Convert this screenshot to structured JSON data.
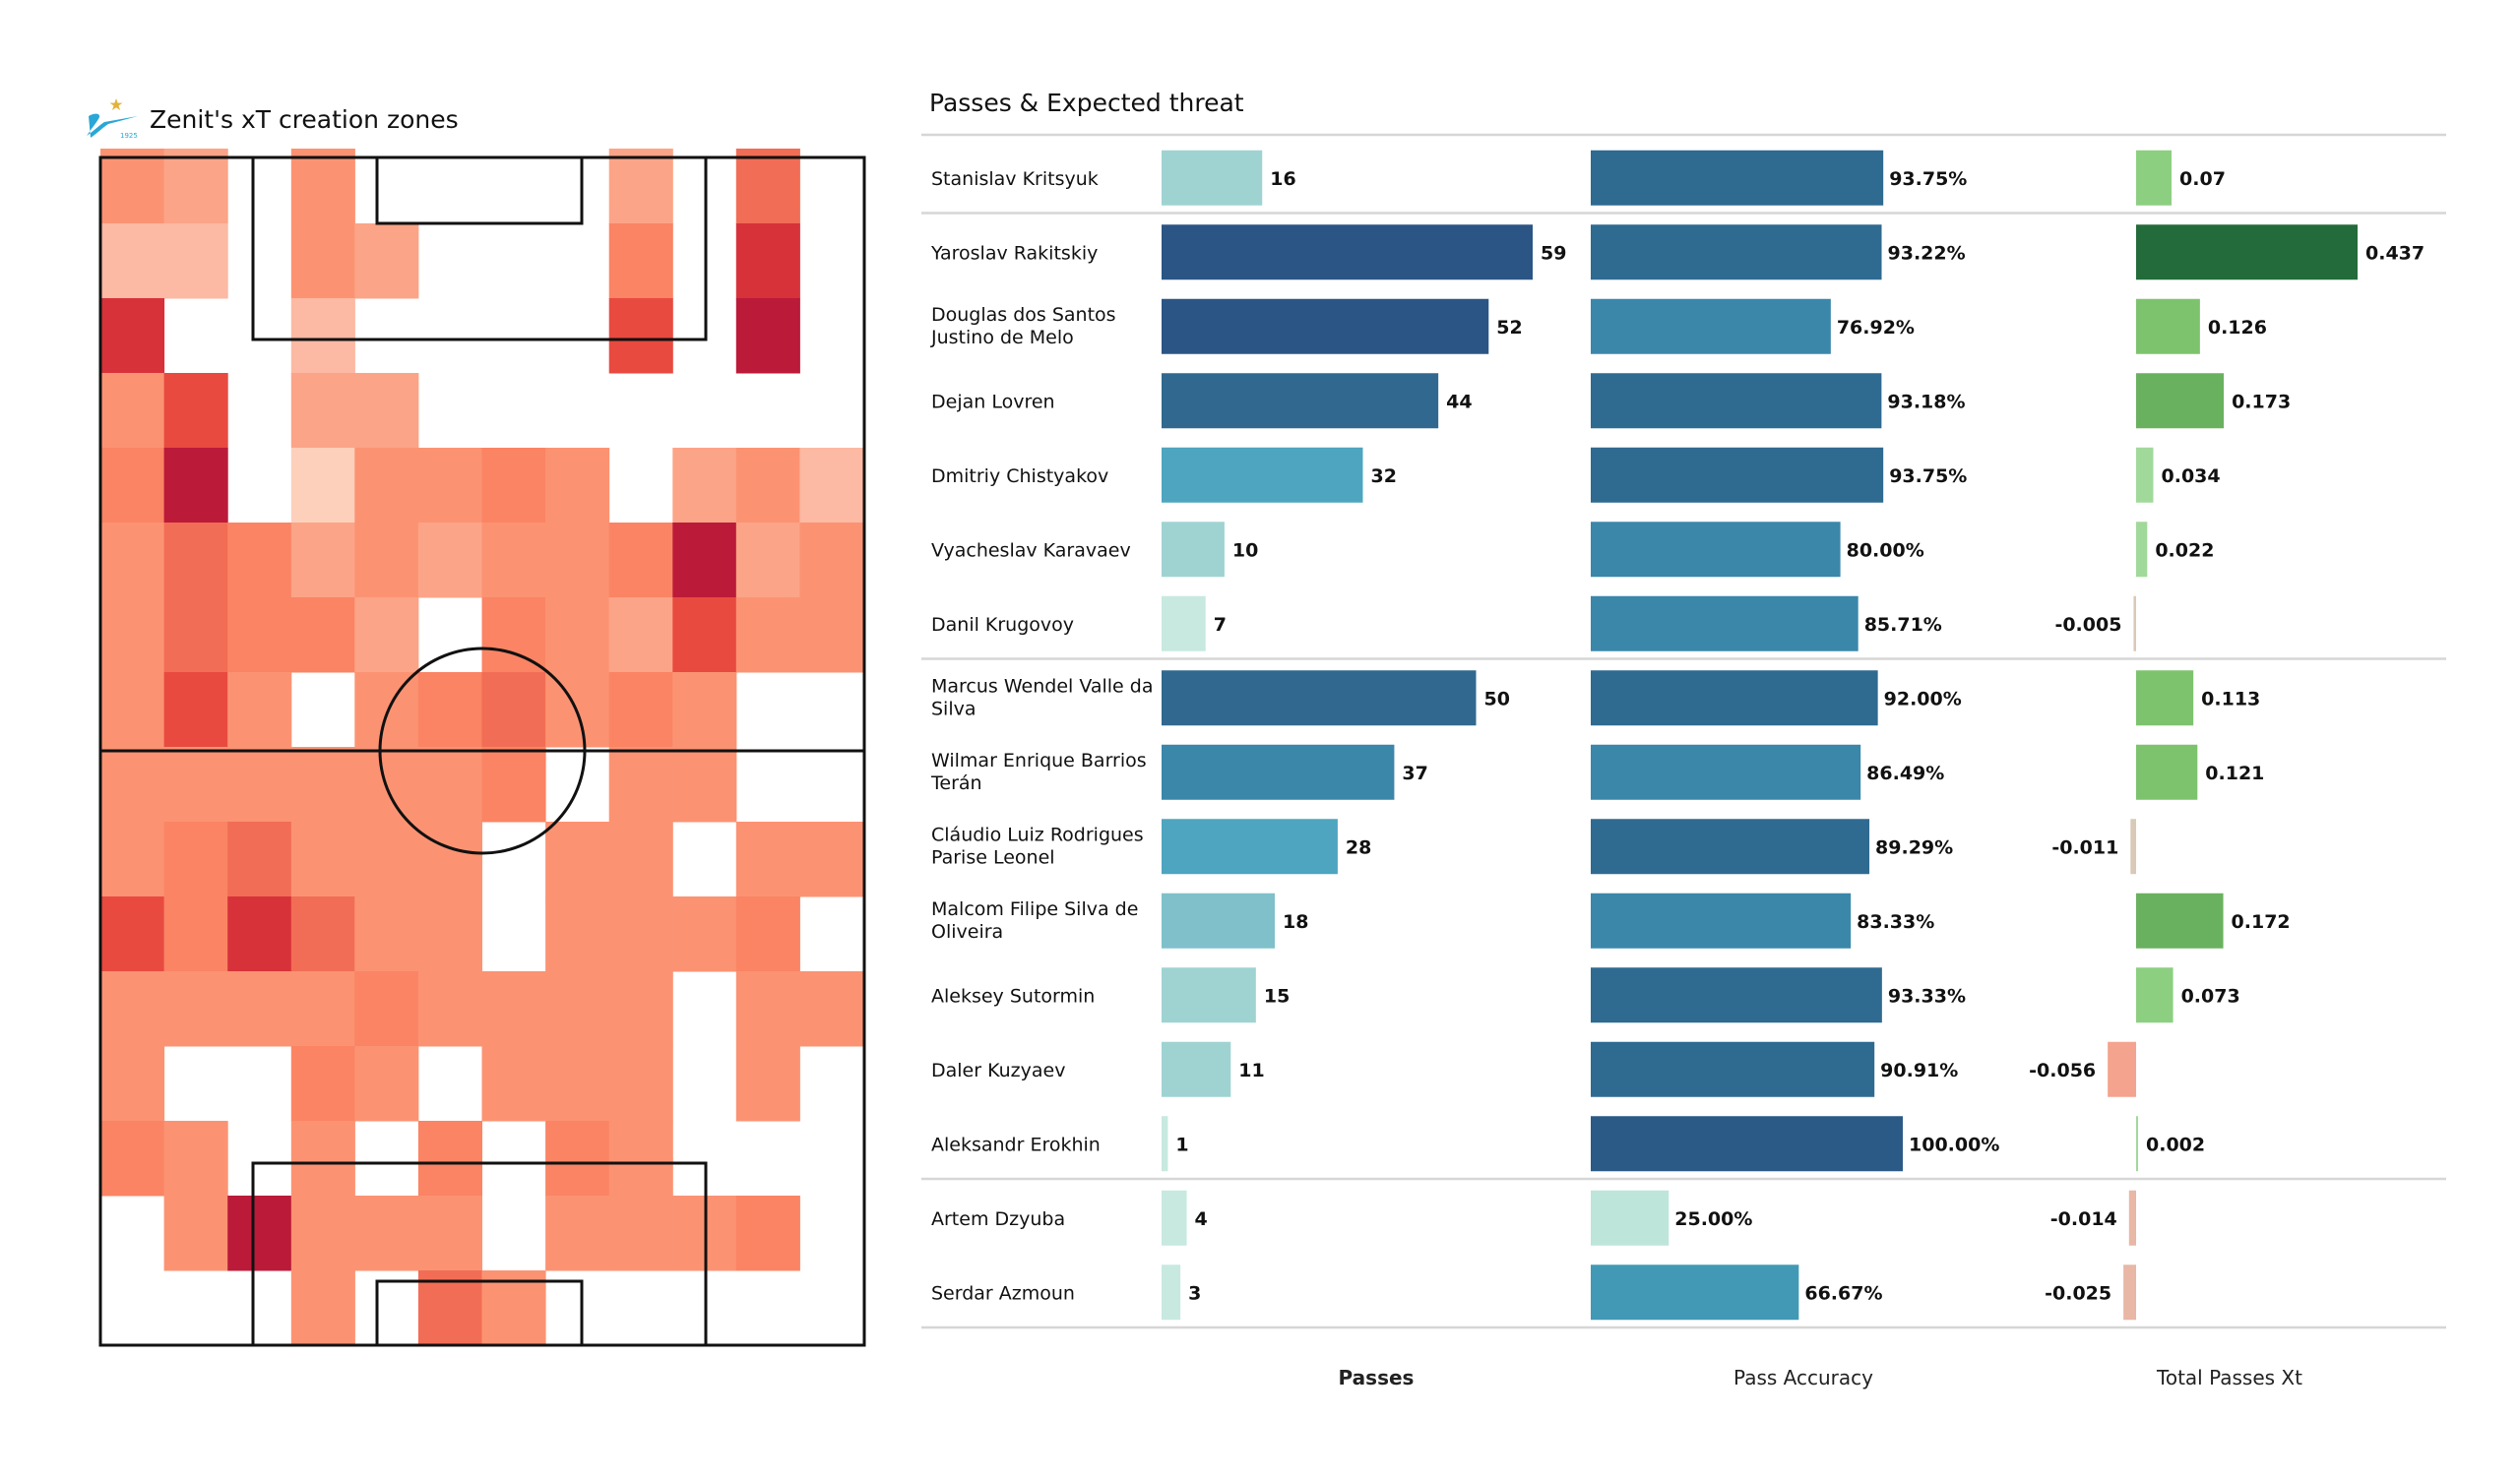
{
  "left_panel": {
    "logo_icon": "zenit-logo-icon",
    "title": "Zenit's xT creation zones"
  },
  "right_panel": {
    "title": "Passes & Expected threat",
    "footers": [
      "Passes",
      "Pass Accuracy",
      "Total Passes Xt"
    ]
  },
  "chart_data": [
    {
      "type": "heatmap",
      "title": "Zenit's xT creation zones",
      "description": "Pitch heatmap of xT creation zones, 12 columns x 16 rows, relative intensity 0 (none) to 9 (highest), top row = attacking end",
      "grid": [
        [
          4,
          3,
          0,
          4,
          0,
          0,
          0,
          0,
          3,
          0,
          6,
          0
        ],
        [
          2,
          2,
          0,
          4,
          3,
          0,
          0,
          0,
          5,
          0,
          8,
          0
        ],
        [
          8,
          0,
          0,
          2,
          0,
          0,
          0,
          0,
          7,
          0,
          9,
          0
        ],
        [
          4,
          7,
          0,
          3,
          3,
          0,
          0,
          0,
          0,
          0,
          0,
          0
        ],
        [
          5,
          9,
          0,
          1,
          4,
          4,
          5,
          4,
          0,
          3,
          4,
          2
        ],
        [
          4,
          6,
          5,
          3,
          4,
          3,
          4,
          4,
          5,
          9,
          3,
          4
        ],
        [
          4,
          6,
          5,
          5,
          3,
          0,
          5,
          4,
          3,
          7,
          4,
          4
        ],
        [
          4,
          7,
          4,
          0,
          4,
          5,
          6,
          4,
          5,
          4,
          0,
          0
        ],
        [
          4,
          4,
          4,
          4,
          4,
          4,
          5,
          0,
          4,
          4,
          0,
          0
        ],
        [
          4,
          5,
          6,
          4,
          4,
          4,
          0,
          4,
          4,
          0,
          4,
          4
        ],
        [
          7,
          5,
          8,
          6,
          4,
          4,
          0,
          4,
          4,
          4,
          5,
          0
        ],
        [
          4,
          4,
          4,
          4,
          5,
          4,
          4,
          4,
          4,
          0,
          4,
          4
        ],
        [
          4,
          0,
          0,
          5,
          4,
          0,
          4,
          4,
          4,
          0,
          4,
          0
        ],
        [
          5,
          4,
          0,
          4,
          0,
          5,
          0,
          5,
          4,
          0,
          0,
          0
        ],
        [
          0,
          4,
          9,
          4,
          4,
          4,
          0,
          4,
          4,
          4,
          5,
          0
        ],
        [
          0,
          0,
          0,
          4,
          0,
          6,
          4,
          0,
          0,
          0,
          0,
          0
        ]
      ],
      "colorscale": [
        "#ffffff",
        "#fdd0bc",
        "#fcb9a3",
        "#fca487",
        "#fb9373",
        "#fa8464",
        "#f26d55",
        "#e84a40",
        "#d7323a",
        "#bb1a39"
      ]
    },
    {
      "type": "table",
      "title": "Passes & Expected threat",
      "columns": [
        "Passes",
        "Pass Accuracy",
        "Total Passes Xt"
      ],
      "rows": [
        {
          "name": [
            "Stanislav Kritsyuk"
          ],
          "passes": 16,
          "accuracy": 93.75,
          "accuracy_label": "93.75%",
          "xt": 0.07,
          "xt_label": "0.07",
          "group": 0
        },
        {
          "name": [
            "Yaroslav Rakitskiy"
          ],
          "passes": 59,
          "accuracy": 93.22,
          "accuracy_label": "93.22%",
          "xt": 0.437,
          "xt_label": "0.437",
          "group": 1
        },
        {
          "name": [
            "Douglas dos Santos",
            "Justino de Melo"
          ],
          "passes": 52,
          "accuracy": 76.92,
          "accuracy_label": "76.92%",
          "xt": 0.126,
          "xt_label": "0.126",
          "group": 1
        },
        {
          "name": [
            "Dejan Lovren"
          ],
          "passes": 44,
          "accuracy": 93.18,
          "accuracy_label": "93.18%",
          "xt": 0.173,
          "xt_label": "0.173",
          "group": 1
        },
        {
          "name": [
            "Dmitriy Chistyakov"
          ],
          "passes": 32,
          "accuracy": 93.75,
          "accuracy_label": "93.75%",
          "xt": 0.034,
          "xt_label": "0.034",
          "group": 1
        },
        {
          "name": [
            "Vyacheslav Karavaev"
          ],
          "passes": 10,
          "accuracy": 80.0,
          "accuracy_label": "80.00%",
          "xt": 0.022,
          "xt_label": "0.022",
          "group": 1
        },
        {
          "name": [
            "Danil Krugovoy"
          ],
          "passes": 7,
          "accuracy": 85.71,
          "accuracy_label": "85.71%",
          "xt": -0.005,
          "xt_label": "-0.005",
          "group": 1
        },
        {
          "name": [
            "Marcus Wendel Valle da",
            "Silva"
          ],
          "passes": 50,
          "accuracy": 92.0,
          "accuracy_label": "92.00%",
          "xt": 0.113,
          "xt_label": "0.113",
          "group": 2
        },
        {
          "name": [
            "Wilmar Enrique Barrios",
            "Terán"
          ],
          "passes": 37,
          "accuracy": 86.49,
          "accuracy_label": "86.49%",
          "xt": 0.121,
          "xt_label": "0.121",
          "group": 2
        },
        {
          "name": [
            "Cláudio Luiz Rodrigues",
            "Parise Leonel"
          ],
          "passes": 28,
          "accuracy": 89.29,
          "accuracy_label": "89.29%",
          "xt": -0.011,
          "xt_label": "-0.011",
          "group": 2
        },
        {
          "name": [
            "Malcom Filipe Silva de",
            "Oliveira"
          ],
          "passes": 18,
          "accuracy": 83.33,
          "accuracy_label": "83.33%",
          "xt": 0.172,
          "xt_label": "0.172",
          "group": 2
        },
        {
          "name": [
            "Aleksey Sutormin"
          ],
          "passes": 15,
          "accuracy": 93.33,
          "accuracy_label": "93.33%",
          "xt": 0.073,
          "xt_label": "0.073",
          "group": 2
        },
        {
          "name": [
            "Daler Kuzyaev"
          ],
          "passes": 11,
          "accuracy": 90.91,
          "accuracy_label": "90.91%",
          "xt": -0.056,
          "xt_label": "-0.056",
          "group": 2
        },
        {
          "name": [
            "Aleksandr Erokhin"
          ],
          "passes": 1,
          "accuracy": 100.0,
          "accuracy_label": "100.00%",
          "xt": 0.002,
          "xt_label": "0.002",
          "group": 2
        },
        {
          "name": [
            "Artem Dzyuba"
          ],
          "passes": 4,
          "accuracy": 25.0,
          "accuracy_label": "25.00%",
          "xt": -0.014,
          "xt_label": "-0.014",
          "group": 3
        },
        {
          "name": [
            "Serdar Azmoun"
          ],
          "passes": 3,
          "accuracy": 66.67,
          "accuracy_label": "66.67%",
          "xt": -0.025,
          "xt_label": "-0.025",
          "group": 3
        }
      ],
      "passes_max": 59,
      "accuracy_max": 100,
      "xt_range": [
        -0.06,
        0.437
      ],
      "colors": {
        "passes_scale": [
          "#c7e9e0",
          "#9fd3d2",
          "#7fc0ca",
          "#4da5c0",
          "#3a87aa",
          "#31688f",
          "#2b5584"
        ],
        "accuracy_scale": [
          "#bde5da",
          "#4299b5",
          "#3a87aa",
          "#2f6a91",
          "#2c5a86"
        ],
        "xt_positive_scale": [
          "#a1d99b",
          "#8ccf80",
          "#7dc36e",
          "#6ab15f",
          "#236b3a"
        ],
        "xt_negative_scale": [
          "#d9c9b6",
          "#e8b7a5",
          "#f4a38e"
        ]
      }
    }
  ]
}
